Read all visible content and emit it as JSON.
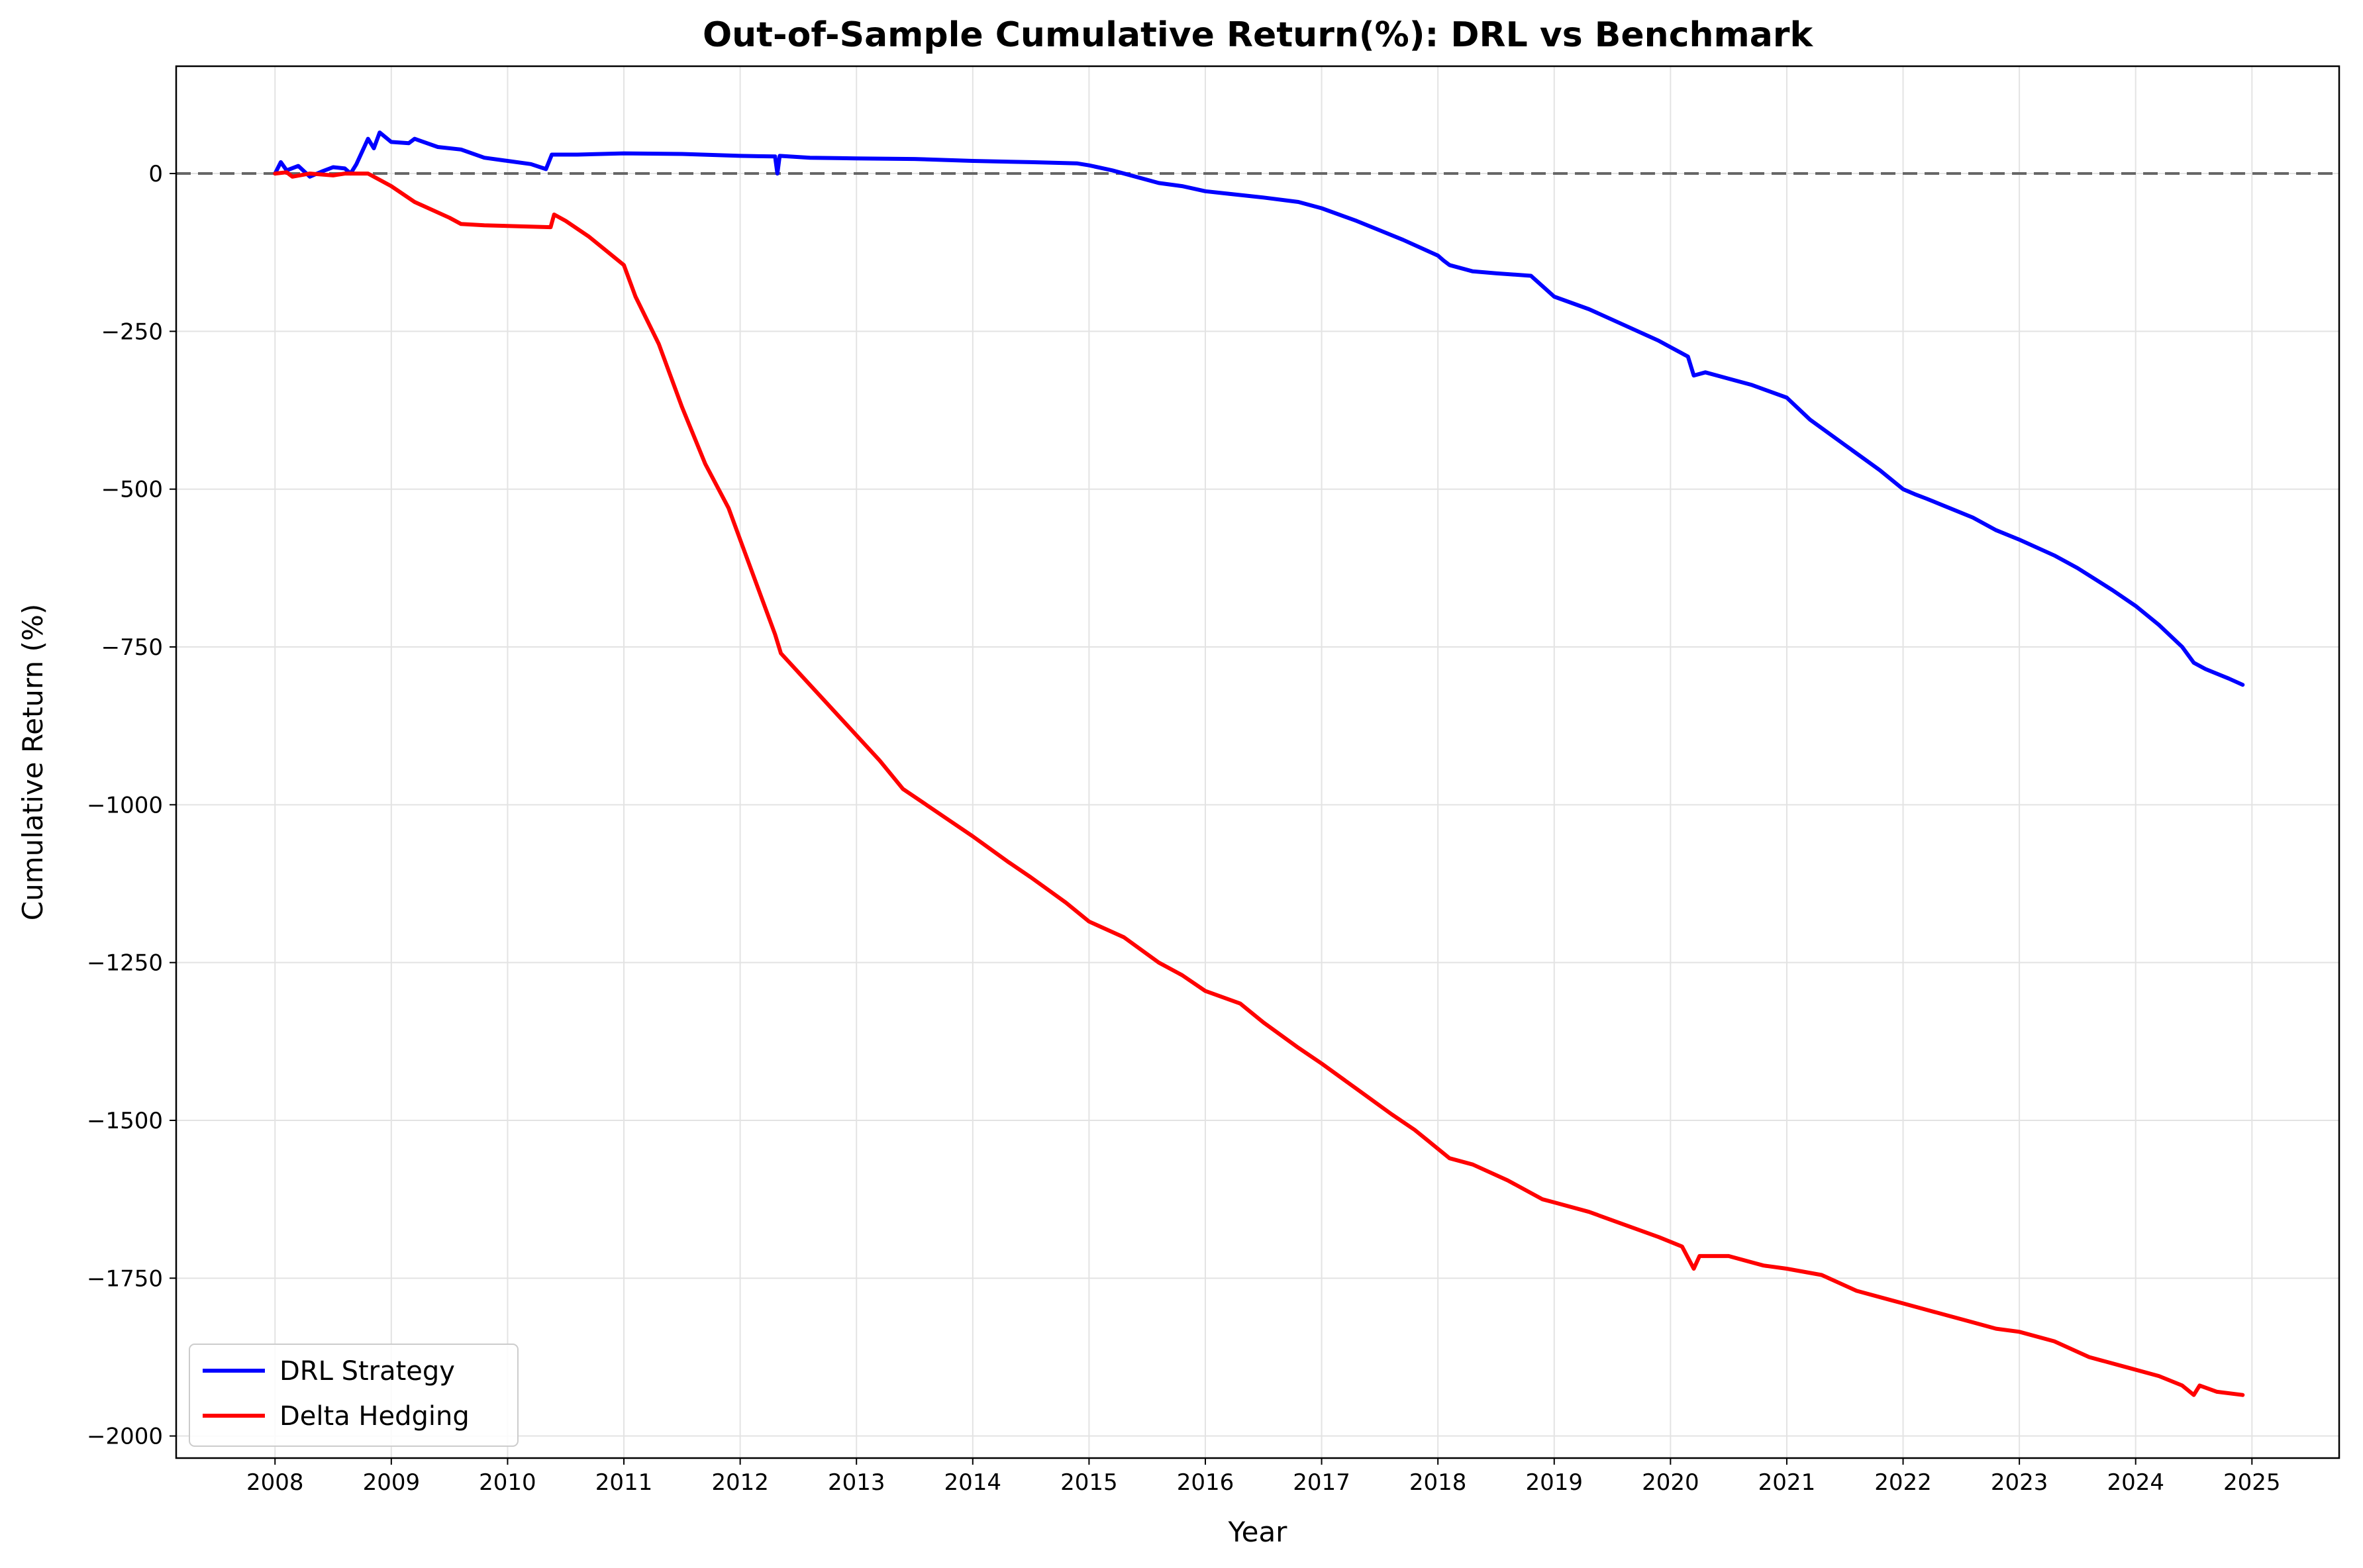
{
  "chart_data": {
    "type": "line",
    "title": "Out-of-Sample Cumulative Return(%): DRL vs Benchmark",
    "xlabel": "Year",
    "ylabel": "Cumulative Return (%)",
    "xlim": [
      2007.15,
      2025.75
    ],
    "ylim": [
      -2035,
      170
    ],
    "x_ticks": [
      2008,
      2009,
      2010,
      2011,
      2012,
      2013,
      2014,
      2015,
      2016,
      2017,
      2018,
      2019,
      2020,
      2021,
      2022,
      2023,
      2024,
      2025
    ],
    "x_tick_labels": [
      "2008",
      "2009",
      "2010",
      "2011",
      "2012",
      "2013",
      "2014",
      "2015",
      "2016",
      "2017",
      "2018",
      "2019",
      "2020",
      "2021",
      "2022",
      "2023",
      "2024",
      "2025"
    ],
    "y_ticks": [
      0,
      -250,
      -500,
      -750,
      -1000,
      -1250,
      -1500,
      -1750,
      -2000
    ],
    "y_tick_labels": [
      "0",
      "−250",
      "−500",
      "−750",
      "−1000",
      "−1250",
      "−1500",
      "−1750",
      "−2000"
    ],
    "grid": true,
    "reference_line": {
      "y": 0,
      "style": "dashed",
      "color": "#666666"
    },
    "legend_position": "lower-left",
    "series": [
      {
        "name": "DRL Strategy",
        "color": "#0000ff",
        "points": [
          [
            2008.0,
            0
          ],
          [
            2008.05,
            18
          ],
          [
            2008.1,
            5
          ],
          [
            2008.2,
            12
          ],
          [
            2008.3,
            -5
          ],
          [
            2008.4,
            3
          ],
          [
            2008.5,
            10
          ],
          [
            2008.6,
            8
          ],
          [
            2008.65,
            0
          ],
          [
            2008.7,
            15
          ],
          [
            2008.8,
            55
          ],
          [
            2008.85,
            40
          ],
          [
            2008.9,
            65
          ],
          [
            2009.0,
            50
          ],
          [
            2009.15,
            48
          ],
          [
            2009.2,
            55
          ],
          [
            2009.4,
            42
          ],
          [
            2009.6,
            38
          ],
          [
            2009.8,
            25
          ],
          [
            2010.0,
            20
          ],
          [
            2010.2,
            15
          ],
          [
            2010.33,
            7
          ],
          [
            2010.38,
            30
          ],
          [
            2010.6,
            30
          ],
          [
            2011.0,
            32
          ],
          [
            2011.5,
            31
          ],
          [
            2012.0,
            28
          ],
          [
            2012.3,
            27
          ],
          [
            2012.32,
            0
          ],
          [
            2012.34,
            28
          ],
          [
            2012.6,
            25
          ],
          [
            2013.0,
            24
          ],
          [
            2013.5,
            23
          ],
          [
            2014.0,
            20
          ],
          [
            2014.5,
            18
          ],
          [
            2014.9,
            16
          ],
          [
            2015.0,
            13
          ],
          [
            2015.2,
            5
          ],
          [
            2015.4,
            -5
          ],
          [
            2015.6,
            -15
          ],
          [
            2015.8,
            -20
          ],
          [
            2016.0,
            -28
          ],
          [
            2016.2,
            -32
          ],
          [
            2016.5,
            -38
          ],
          [
            2016.8,
            -45
          ],
          [
            2017.0,
            -55
          ],
          [
            2017.3,
            -75
          ],
          [
            2017.5,
            -90
          ],
          [
            2017.7,
            -105
          ],
          [
            2018.0,
            -130
          ],
          [
            2018.05,
            -138
          ],
          [
            2018.1,
            -145
          ],
          [
            2018.3,
            -155
          ],
          [
            2018.5,
            -158
          ],
          [
            2018.8,
            -162
          ],
          [
            2019.0,
            -195
          ],
          [
            2019.3,
            -215
          ],
          [
            2019.6,
            -240
          ],
          [
            2019.9,
            -265
          ],
          [
            2020.0,
            -275
          ],
          [
            2020.15,
            -290
          ],
          [
            2020.2,
            -320
          ],
          [
            2020.3,
            -315
          ],
          [
            2020.5,
            -325
          ],
          [
            2020.7,
            -335
          ],
          [
            2021.0,
            -355
          ],
          [
            2021.2,
            -390
          ],
          [
            2021.5,
            -430
          ],
          [
            2021.8,
            -470
          ],
          [
            2022.0,
            -500
          ],
          [
            2022.1,
            -508
          ],
          [
            2022.2,
            -515
          ],
          [
            2022.4,
            -530
          ],
          [
            2022.6,
            -545
          ],
          [
            2022.8,
            -565
          ],
          [
            2023.0,
            -580
          ],
          [
            2023.3,
            -605
          ],
          [
            2023.5,
            -625
          ],
          [
            2023.8,
            -660
          ],
          [
            2024.0,
            -685
          ],
          [
            2024.2,
            -715
          ],
          [
            2024.4,
            -750
          ],
          [
            2024.5,
            -775
          ],
          [
            2024.6,
            -785
          ],
          [
            2024.8,
            -800
          ],
          [
            2024.92,
            -810
          ]
        ]
      },
      {
        "name": "Delta Hedging",
        "color": "#ff0000",
        "points": [
          [
            2008.0,
            0
          ],
          [
            2008.1,
            2
          ],
          [
            2008.15,
            -5
          ],
          [
            2008.3,
            0
          ],
          [
            2008.5,
            -3
          ],
          [
            2008.6,
            0
          ],
          [
            2008.8,
            0
          ],
          [
            2008.9,
            -10
          ],
          [
            2009.0,
            -20
          ],
          [
            2009.2,
            -45
          ],
          [
            2009.5,
            -70
          ],
          [
            2009.6,
            -80
          ],
          [
            2009.8,
            -82
          ],
          [
            2010.0,
            -83
          ],
          [
            2010.37,
            -85
          ],
          [
            2010.4,
            -65
          ],
          [
            2010.5,
            -75
          ],
          [
            2010.7,
            -100
          ],
          [
            2011.0,
            -145
          ],
          [
            2011.1,
            -195
          ],
          [
            2011.3,
            -270
          ],
          [
            2011.5,
            -370
          ],
          [
            2011.7,
            -460
          ],
          [
            2011.9,
            -530
          ],
          [
            2012.0,
            -580
          ],
          [
            2012.2,
            -680
          ],
          [
            2012.3,
            -730
          ],
          [
            2012.35,
            -760
          ],
          [
            2012.5,
            -790
          ],
          [
            2012.7,
            -830
          ],
          [
            2013.0,
            -890
          ],
          [
            2013.2,
            -930
          ],
          [
            2013.4,
            -975
          ],
          [
            2013.6,
            -1000
          ],
          [
            2013.8,
            -1025
          ],
          [
            2014.0,
            -1050
          ],
          [
            2014.3,
            -1090
          ],
          [
            2014.5,
            -1115
          ],
          [
            2014.8,
            -1155
          ],
          [
            2015.0,
            -1185
          ],
          [
            2015.3,
            -1210
          ],
          [
            2015.6,
            -1250
          ],
          [
            2015.8,
            -1270
          ],
          [
            2016.0,
            -1295
          ],
          [
            2016.3,
            -1315
          ],
          [
            2016.5,
            -1345
          ],
          [
            2016.8,
            -1385
          ],
          [
            2017.0,
            -1410
          ],
          [
            2017.3,
            -1450
          ],
          [
            2017.6,
            -1490
          ],
          [
            2017.8,
            -1515
          ],
          [
            2018.0,
            -1545
          ],
          [
            2018.1,
            -1560
          ],
          [
            2018.3,
            -1570
          ],
          [
            2018.6,
            -1595
          ],
          [
            2018.9,
            -1625
          ],
          [
            2019.0,
            -1630
          ],
          [
            2019.3,
            -1645
          ],
          [
            2019.6,
            -1665
          ],
          [
            2019.9,
            -1685
          ],
          [
            2020.1,
            -1700
          ],
          [
            2020.2,
            -1735
          ],
          [
            2020.25,
            -1715
          ],
          [
            2020.5,
            -1715
          ],
          [
            2020.8,
            -1730
          ],
          [
            2021.0,
            -1735
          ],
          [
            2021.3,
            -1745
          ],
          [
            2021.6,
            -1770
          ],
          [
            2021.9,
            -1785
          ],
          [
            2022.0,
            -1790
          ],
          [
            2022.2,
            -1800
          ],
          [
            2022.4,
            -1810
          ],
          [
            2022.6,
            -1820
          ],
          [
            2022.8,
            -1830
          ],
          [
            2023.0,
            -1835
          ],
          [
            2023.3,
            -1850
          ],
          [
            2023.6,
            -1875
          ],
          [
            2023.9,
            -1890
          ],
          [
            2024.2,
            -1905
          ],
          [
            2024.4,
            -1920
          ],
          [
            2024.5,
            -1935
          ],
          [
            2024.55,
            -1920
          ],
          [
            2024.7,
            -1930
          ],
          [
            2024.92,
            -1935
          ]
        ]
      }
    ]
  }
}
